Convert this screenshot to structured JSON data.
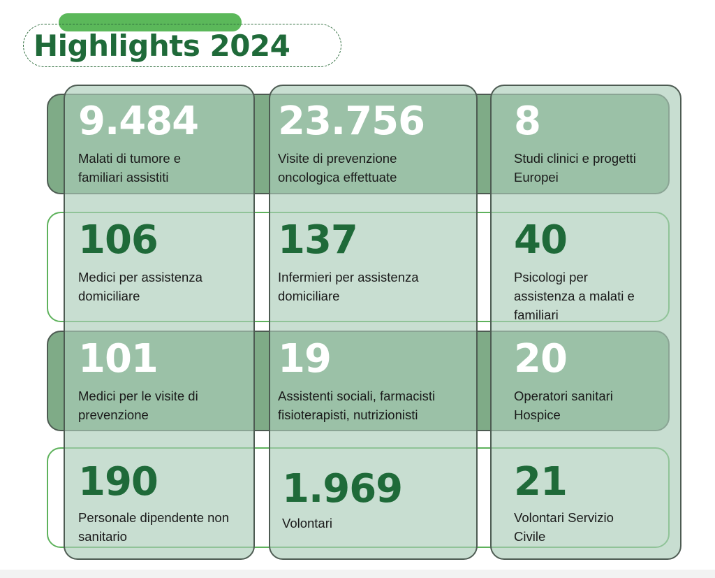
{
  "title": "Highlights 2024",
  "colors": {
    "title_green": "#1f6a39",
    "accent_green": "#5bb85a",
    "dark_band": "#7fab87",
    "light_column": "#b9d6c6",
    "outline_green": "#5eb25c",
    "border_dark": "#4d5b52"
  },
  "stats": [
    {
      "value": "9.484",
      "label": "Malati di tumore e familiari assistiti"
    },
    {
      "value": "23.756",
      "label": "Visite di prevenzione oncologica effettuate"
    },
    {
      "value": "8",
      "label": "Studi clinici e progetti Europei"
    },
    {
      "value": "106",
      "label": "Medici per assistenza domiciliare"
    },
    {
      "value": "137",
      "label": "Infermieri per assistenza domiciliare"
    },
    {
      "value": "40",
      "label": "Psicologi per assistenza a malati e familiari"
    },
    {
      "value": "101",
      "label": "Medici per le visite di prevenzione"
    },
    {
      "value": "19",
      "label": "Assistenti sociali, farmacisti fisioterapisti, nutrizionisti"
    },
    {
      "value": "20",
      "label": "Operatori sanitari Hospice"
    },
    {
      "value": "190",
      "label": "Personale dipendente non sanitario"
    },
    {
      "value": "1.969",
      "label": "Volontari"
    },
    {
      "value": "21",
      "label": "Volontari Servizio Civile"
    }
  ]
}
